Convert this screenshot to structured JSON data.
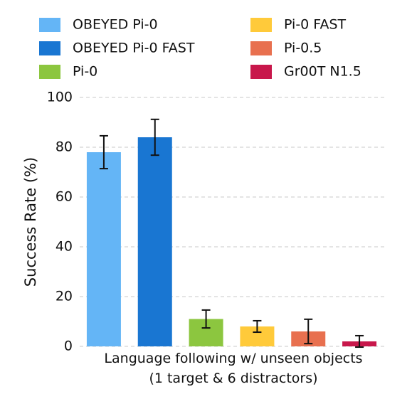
{
  "chart_data": {
    "type": "bar",
    "ylabel": "Success Rate (%)",
    "categories": [
      "Language following w/ unseen objects\n(1 target & 6 distractors)"
    ],
    "series": [
      {
        "name": "OBEYED Pi-0",
        "color": "#64b5f6",
        "values": [
          78
        ],
        "errors": [
          6.6
        ]
      },
      {
        "name": "OBEYED Pi-0 FAST",
        "color": "#1976d2",
        "values": [
          84
        ],
        "errors": [
          7.2
        ]
      },
      {
        "name": "Pi-0",
        "color": "#8cc63f",
        "values": [
          11
        ],
        "errors": [
          3.6
        ]
      },
      {
        "name": "Pi-0 FAST",
        "color": "#ffca3a",
        "values": [
          8
        ],
        "errors": [
          2.3
        ]
      },
      {
        "name": "Pi-0.5",
        "color": "#e8704f",
        "values": [
          6
        ],
        "errors": [
          4.9
        ]
      },
      {
        "name": "Gr00T N1.5",
        "color": "#c8174b",
        "values": [
          2
        ],
        "errors": [
          2.3
        ]
      }
    ],
    "ylim": [
      0,
      100
    ],
    "yticks": [
      0,
      20,
      40,
      60,
      80,
      100
    ],
    "grid": true,
    "legend": "top"
  }
}
